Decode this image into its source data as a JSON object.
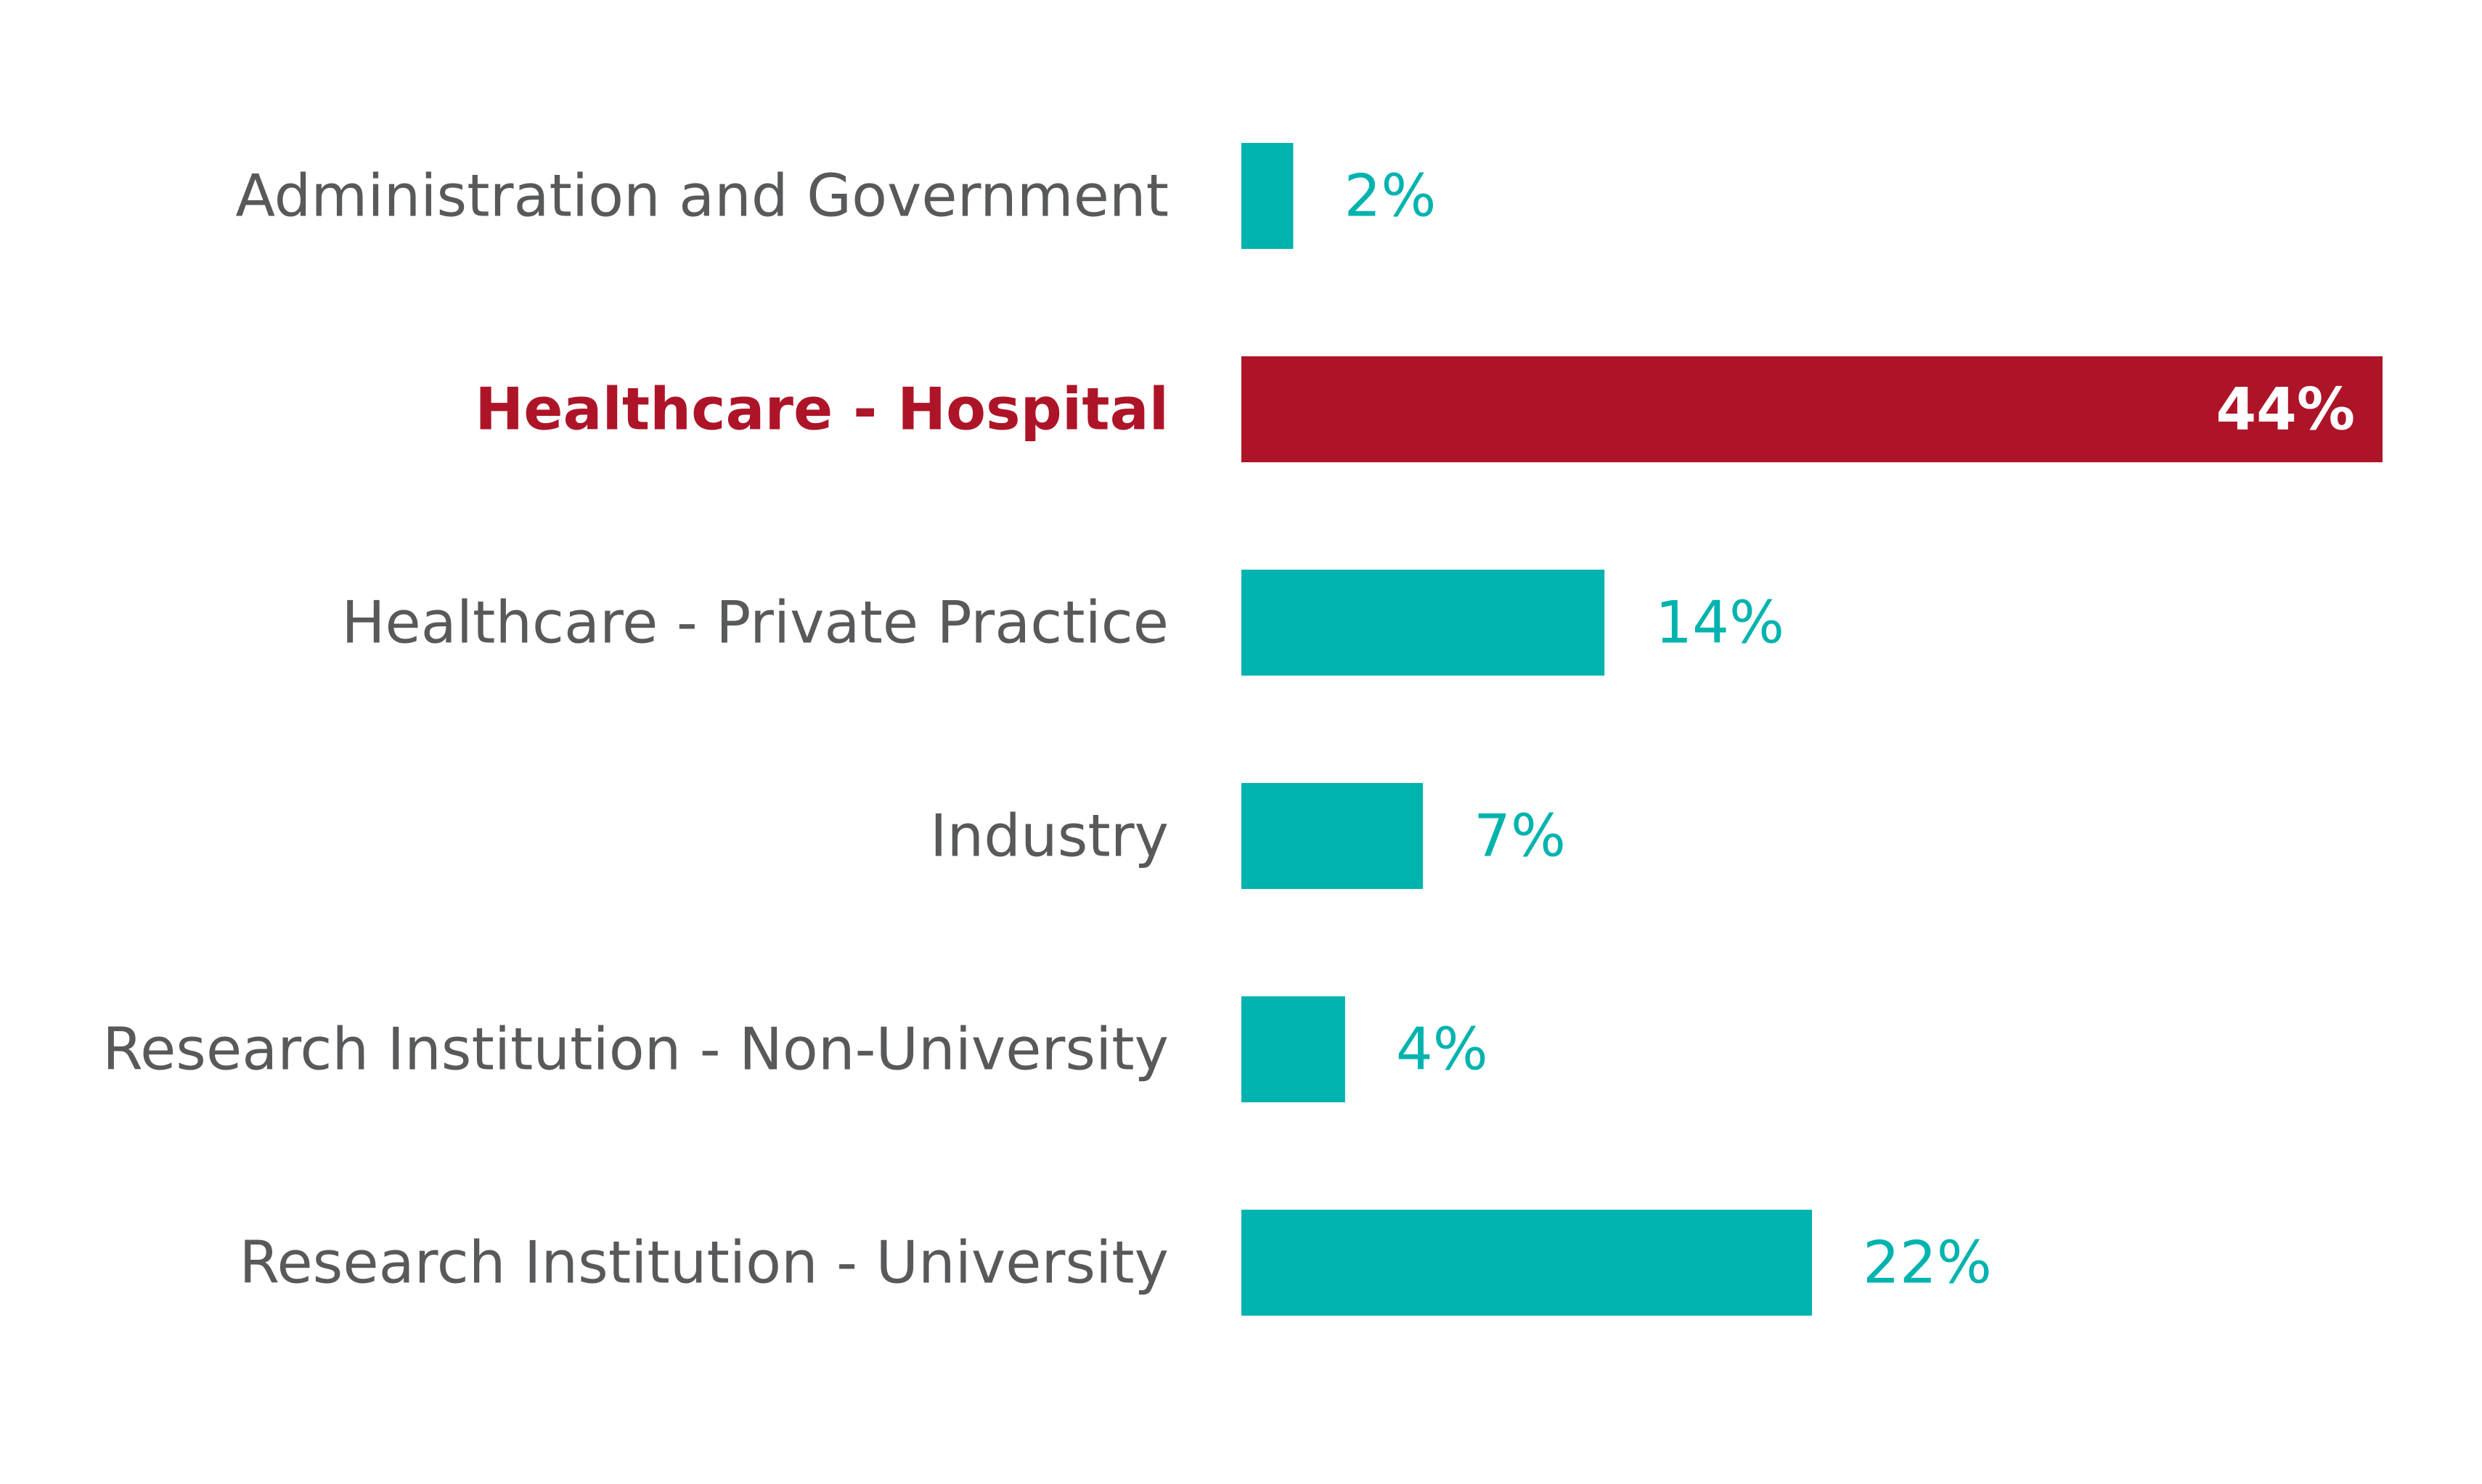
{
  "chart_data": {
    "type": "bar",
    "orientation": "horizontal",
    "title": "",
    "xlabel": "",
    "ylabel": "",
    "categories": [
      "Administration and Government",
      "Healthcare - Hospital",
      "Healthcare - Private Practice",
      "Industry",
      "Research Institution - Non-University",
      "Research Institution - University"
    ],
    "values": [
      2,
      44,
      14,
      7,
      4,
      22
    ],
    "value_labels": [
      "2%",
      "44%",
      "14%",
      "7%",
      "4%",
      "22%"
    ],
    "highlighted_index": 1,
    "xlim": [
      0,
      44
    ],
    "grid": false,
    "legend": "none"
  },
  "colors": {
    "bar": "#00b3ae",
    "highlight": "#ae1428",
    "label": "#58595b",
    "highlight_value_text": "#ffffff"
  }
}
